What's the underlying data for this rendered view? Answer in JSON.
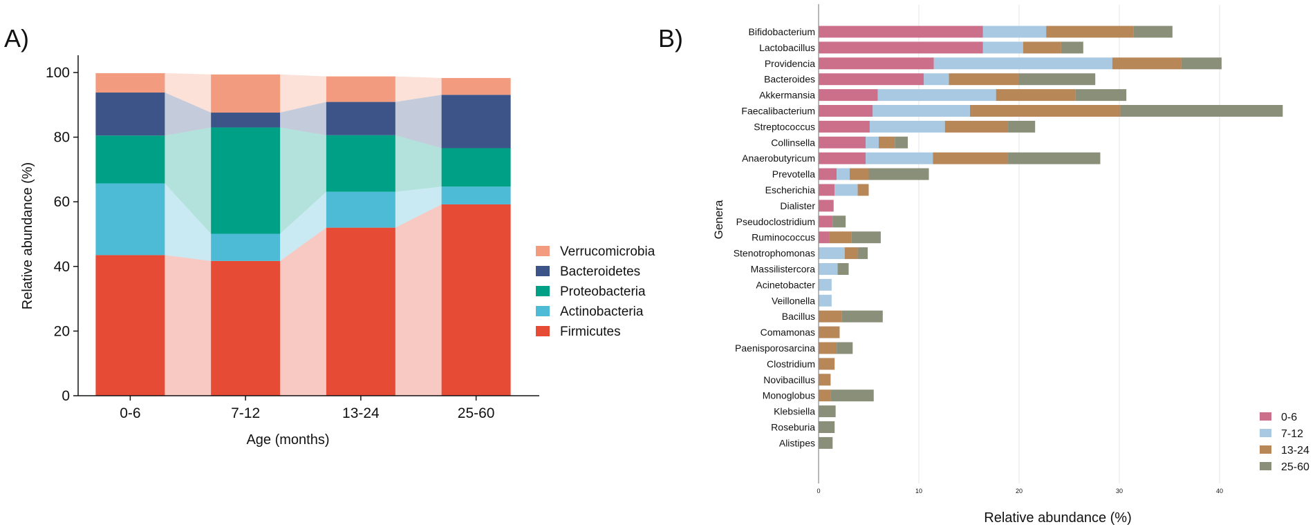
{
  "chart_data": [
    {
      "panel_label": "A)",
      "type": "bar",
      "stacked": true,
      "xlabel": "Age (months)",
      "ylabel": "Relative abundance (%)",
      "ylim": [
        0,
        100
      ],
      "yticks": [
        "0",
        "20",
        "40",
        "60",
        "80",
        "100"
      ],
      "categories": [
        "0-6",
        "7-12",
        "13-24",
        "25-60"
      ],
      "series": [
        {
          "name": "Firmicutes",
          "color": "#e64b35",
          "values": [
            43.5,
            41.7,
            52.0,
            59.2
          ]
        },
        {
          "name": "Actinobacteria",
          "color": "#4dbbd5",
          "values": [
            22.2,
            8.4,
            11.1,
            5.5
          ]
        },
        {
          "name": "Proteobacteria",
          "color": "#00a087",
          "values": [
            14.8,
            32.9,
            17.5,
            11.9
          ]
        },
        {
          "name": "Bacteroidetes",
          "color": "#3c5488",
          "values": [
            13.3,
            4.6,
            10.3,
            16.5
          ]
        },
        {
          "name": "Verrucomicrobia",
          "color": "#f39b7f",
          "values": [
            6.0,
            11.8,
            7.9,
            5.2
          ]
        }
      ],
      "legend_order": [
        "Verrucomicrobia",
        "Bacteroidetes",
        "Proteobacteria",
        "Actinobacteria",
        "Firmicutes"
      ],
      "legend_position": "right"
    },
    {
      "panel_label": "B)",
      "type": "bar",
      "orientation": "horizontal",
      "stacked": true,
      "xlabel": "Relative abundance (%)",
      "ylabel": "Genera",
      "xlim": [
        0,
        47
      ],
      "xticks": [
        "0",
        "10",
        "20",
        "30",
        "40"
      ],
      "grid": true,
      "legend_position": "bottom-right",
      "categories": [
        "Bifidobacterium",
        "Lactobacillus",
        "Providencia",
        "Bacteroides",
        "Akkermansia",
        "Faecalibacterium",
        "Streptococcus",
        "Collinsella",
        "Anaerobutyricum",
        "Prevotella",
        "Escherichia",
        "Dialister",
        "Pseudoclostridium",
        "Ruminococcus",
        "Stenotrophomonas",
        "Massilistercora",
        "Acinetobacter",
        "Veillonella",
        "Bacillus",
        "Comamonas",
        "Paenisporosarcina",
        "Clostridium",
        "Novibacillus",
        "Monoglobus",
        "Klebsiella",
        "Roseburia",
        "Alistipes"
      ],
      "series": [
        {
          "name": "0-6",
          "color": "#cc6f8a",
          "values": [
            16.4,
            16.4,
            11.5,
            10.5,
            5.9,
            5.4,
            5.1,
            4.7,
            4.7,
            1.8,
            1.6,
            1.5,
            1.4,
            1.1,
            0,
            0,
            0,
            0,
            0,
            0,
            0,
            0,
            0,
            0,
            0,
            0,
            0
          ]
        },
        {
          "name": "7-12",
          "color": "#a9c9e3",
          "values": [
            6.3,
            4.0,
            17.8,
            2.5,
            11.8,
            9.7,
            7.5,
            1.3,
            6.7,
            1.3,
            2.3,
            0,
            0,
            0,
            2.6,
            1.9,
            1.3,
            1.3,
            0,
            0,
            0,
            0,
            0,
            0,
            0,
            0,
            0
          ]
        },
        {
          "name": "13-24",
          "color": "#b88757",
          "values": [
            8.7,
            3.8,
            6.9,
            7.0,
            7.9,
            15.0,
            6.3,
            1.6,
            7.5,
            1.9,
            1.1,
            0,
            0,
            2.2,
            1.3,
            0,
            0,
            0,
            2.3,
            2.1,
            1.8,
            1.6,
            1.2,
            1.2,
            0,
            0,
            0
          ]
        },
        {
          "name": "25-60",
          "color": "#8a8f7a",
          "values": [
            3.9,
            2.2,
            4.0,
            7.6,
            5.1,
            16.2,
            2.7,
            1.3,
            9.2,
            6.0,
            0,
            0,
            1.3,
            2.9,
            1.0,
            1.1,
            0,
            0,
            4.1,
            0,
            1.6,
            0,
            0,
            4.3,
            1.7,
            1.6,
            1.4
          ]
        }
      ]
    }
  ]
}
